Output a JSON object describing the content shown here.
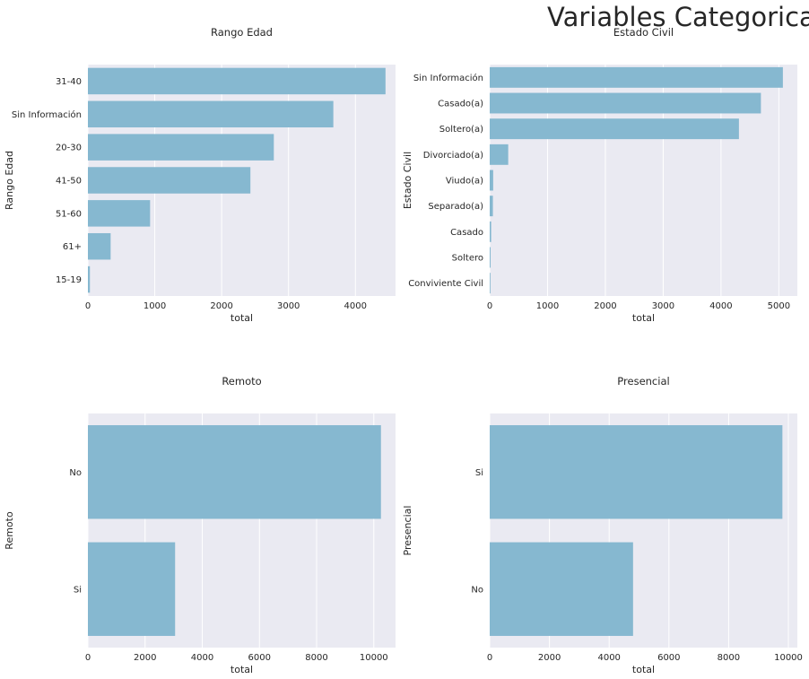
{
  "figure": {
    "suptitle": "Variables Categoricas"
  },
  "style": {
    "panel_bg": "#eaeaf2",
    "bar_color": "#86b8d0",
    "grid_color": "#ffffff",
    "text_color": "#262626"
  },
  "chart_data": [
    {
      "type": "bar",
      "orientation": "horizontal",
      "title": "Rango Edad",
      "xlabel": "total",
      "ylabel": "Rango Edad",
      "categories": [
        "31-40",
        "Sin Información",
        "20-30",
        "41-50",
        "51-60",
        "61+",
        "15-19"
      ],
      "values": [
        4450,
        3670,
        2780,
        2430,
        930,
        340,
        30
      ],
      "xlim": [
        0,
        4600
      ],
      "xticks": [
        0,
        1000,
        2000,
        3000,
        4000
      ],
      "grid": true
    },
    {
      "type": "bar",
      "orientation": "horizontal",
      "title": "Estado Civil",
      "xlabel": "total",
      "ylabel": "Estado Civil",
      "categories": [
        "Sin Información",
        "Casado(a)",
        "Soltero(a)",
        "Divorciado(a)",
        "Viudo(a)",
        "Separado(a)",
        "Casado",
        "Soltero",
        "Conviviente Civil"
      ],
      "values": [
        5070,
        4690,
        4310,
        320,
        60,
        55,
        25,
        15,
        10
      ],
      "xlim": [
        0,
        5320
      ],
      "xticks": [
        0,
        1000,
        2000,
        3000,
        4000,
        5000
      ],
      "grid": true
    },
    {
      "type": "bar",
      "orientation": "horizontal",
      "title": "Remoto",
      "xlabel": "total",
      "ylabel": "Remoto",
      "categories": [
        "No",
        "Si"
      ],
      "values": [
        10250,
        3050
      ],
      "xlim": [
        0,
        10760
      ],
      "xticks": [
        0,
        2000,
        4000,
        6000,
        8000,
        10000
      ],
      "grid": true
    },
    {
      "type": "bar",
      "orientation": "horizontal",
      "title": "Presencial",
      "xlabel": "total",
      "ylabel": "Presencial",
      "categories": [
        "Si",
        "No"
      ],
      "values": [
        9800,
        4800
      ],
      "xlim": [
        0,
        10300
      ],
      "xticks": [
        0,
        2000,
        4000,
        6000,
        8000,
        10000
      ],
      "grid": true
    }
  ]
}
